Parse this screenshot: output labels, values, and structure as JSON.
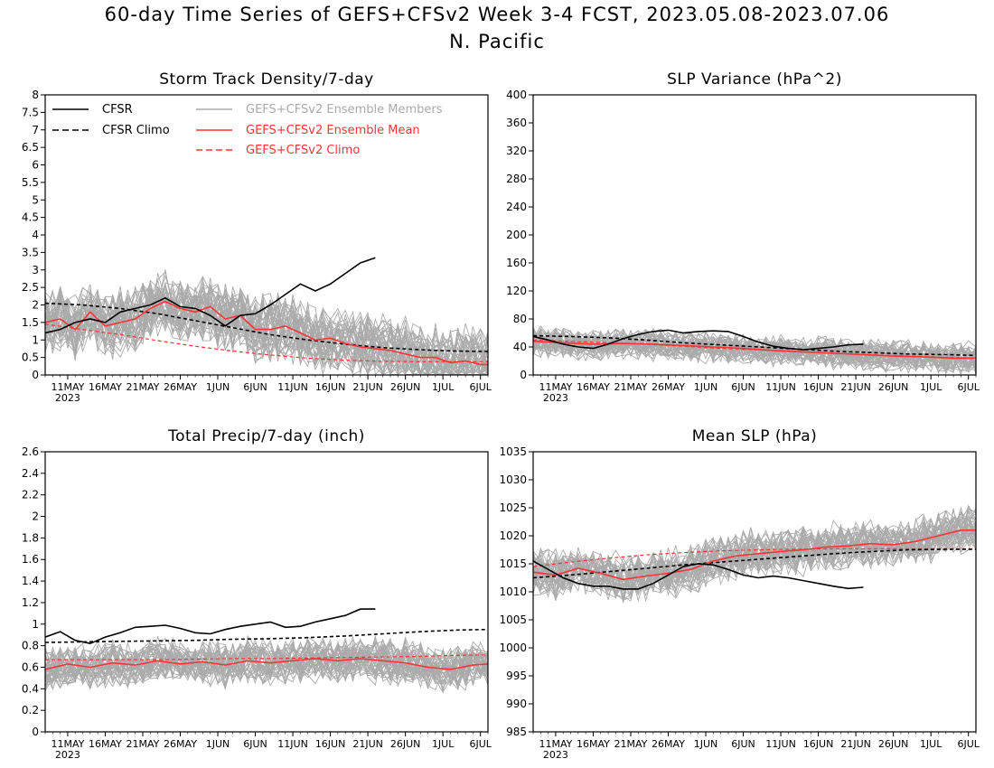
{
  "title_line1": "60-day Time Series of GEFS+CFSv2 Week 3-4 FCST, 2023.05.08-2023.07.06",
  "title_line2": "N. Pacific",
  "x_tick_labels": [
    "11MAY",
    "16MAY",
    "21MAY",
    "26MAY",
    "1JUN",
    "6JUN",
    "11JUN",
    "16JUN",
    "21JUN",
    "26JUN",
    "1JUL",
    "6JUL"
  ],
  "x_year_label": "2023",
  "legend": {
    "cfsr": "CFSR",
    "cfsr_climo": "CFSR Climo",
    "members": "GEFS+CFSv2 Ensemble Members",
    "ens_mean": "GEFS+CFSv2 Ensemble Mean",
    "gefs_climo": "GEFS+CFSv2 Climo"
  },
  "colors": {
    "cfsr": "#000000",
    "members": "#aaaaaa",
    "ens_mean": "#ff3333",
    "gefs_climo": "#ff3333"
  },
  "chart_data": [
    {
      "type": "line",
      "title": "Storm Track Density/7-day",
      "ylim": [
        0,
        8
      ],
      "y_ticks": [
        "0",
        "0.5",
        "1",
        "1.5",
        "2",
        "2.5",
        "3",
        "3.5",
        "4",
        "4.5",
        "5",
        "5.5",
        "6",
        "6.5",
        "7",
        "7.5",
        "8"
      ],
      "x_days": [
        0,
        59
      ],
      "series": [
        {
          "name": "CFSR",
          "style": "solid-black",
          "x": [
            0,
            2,
            4,
            6,
            8,
            10,
            12,
            14,
            16,
            18,
            20,
            22,
            24,
            26,
            28,
            30,
            32,
            34,
            36,
            38,
            40,
            42,
            44
          ],
          "y": [
            1.2,
            1.3,
            1.5,
            1.6,
            1.5,
            1.8,
            1.9,
            2.0,
            2.2,
            1.95,
            1.9,
            1.7,
            1.4,
            1.7,
            1.75,
            2.0,
            2.3,
            2.6,
            2.4,
            2.6,
            2.9,
            3.2,
            3.35
          ]
        },
        {
          "name": "CFSR Climo",
          "style": "dashed-black",
          "x": [
            0,
            5,
            10,
            15,
            20,
            25,
            30,
            35,
            40,
            45,
            50,
            55,
            59
          ],
          "y": [
            2.05,
            2.0,
            1.9,
            1.75,
            1.55,
            1.35,
            1.15,
            1.0,
            0.88,
            0.78,
            0.72,
            0.68,
            0.67
          ]
        },
        {
          "name": "GEFS+CFSv2 Ensemble Mean",
          "style": "solid-red",
          "x": [
            0,
            2,
            4,
            6,
            8,
            10,
            12,
            14,
            16,
            18,
            20,
            22,
            24,
            26,
            28,
            30,
            32,
            34,
            36,
            38,
            40,
            42,
            44,
            46,
            48,
            50,
            52,
            54,
            56,
            58,
            59
          ],
          "y": [
            1.5,
            1.6,
            1.3,
            1.8,
            1.4,
            1.5,
            1.6,
            1.9,
            2.1,
            1.9,
            1.8,
            1.95,
            1.6,
            1.7,
            1.3,
            1.3,
            1.4,
            1.2,
            1.0,
            1.05,
            0.9,
            0.8,
            0.75,
            0.7,
            0.6,
            0.5,
            0.5,
            0.35,
            0.4,
            0.3,
            0.3
          ]
        },
        {
          "name": "GEFS+CFSv2 Climo",
          "style": "dashed-red",
          "x": [
            0,
            5,
            10,
            15,
            20,
            25,
            30,
            35,
            40,
            45,
            50,
            55,
            59
          ],
          "y": [
            1.45,
            1.3,
            1.15,
            0.98,
            0.82,
            0.68,
            0.57,
            0.48,
            0.42,
            0.39,
            0.38,
            0.38,
            0.38
          ]
        }
      ],
      "members": {
        "name": "GEFS+CFSv2 Ensemble Members",
        "count": 40,
        "mean_ref": "GEFS+CFSv2 Ensemble Mean",
        "spread": 0.8
      }
    },
    {
      "type": "line",
      "title": "SLP Variance (hPa^2)",
      "ylim": [
        0,
        400
      ],
      "y_ticks": [
        "0",
        "40",
        "80",
        "120",
        "160",
        "200",
        "240",
        "280",
        "320",
        "360",
        "400"
      ],
      "x_days": [
        0,
        59
      ],
      "series": [
        {
          "name": "CFSR",
          "style": "solid-black",
          "x": [
            0,
            2,
            4,
            6,
            8,
            10,
            12,
            14,
            16,
            18,
            20,
            22,
            24,
            26,
            28,
            30,
            32,
            34,
            36,
            38,
            40,
            42,
            44
          ],
          "y": [
            55,
            50,
            44,
            40,
            38,
            44,
            52,
            58,
            62,
            64,
            60,
            62,
            63,
            62,
            55,
            47,
            41,
            38,
            36,
            38,
            40,
            43,
            44
          ]
        },
        {
          "name": "CFSR Climo",
          "style": "dashed-black",
          "x": [
            0,
            5,
            10,
            15,
            20,
            25,
            30,
            35,
            40,
            45,
            50,
            55,
            59
          ],
          "y": [
            56,
            55,
            53,
            50,
            46,
            43,
            40,
            37,
            34,
            32,
            30,
            29,
            28
          ]
        },
        {
          "name": "GEFS+CFSv2 Ensemble Mean",
          "style": "solid-red",
          "x": [
            0,
            4,
            8,
            12,
            16,
            20,
            24,
            28,
            32,
            36,
            40,
            44,
            48,
            52,
            56,
            59
          ],
          "y": [
            48,
            46,
            44,
            45,
            44,
            42,
            40,
            38,
            35,
            33,
            31,
            29,
            27,
            26,
            24,
            24
          ]
        },
        {
          "name": "GEFS+CFSv2 Climo",
          "style": "dashed-red",
          "x": [
            0,
            5,
            10,
            15,
            20,
            25,
            30,
            35,
            40,
            45,
            50,
            55,
            59
          ],
          "y": [
            50,
            48,
            46,
            44,
            41,
            38,
            36,
            33,
            31,
            29,
            27,
            25,
            24
          ]
        }
      ],
      "members": {
        "name": "GEFS+CFSv2 Ensemble Members",
        "count": 40,
        "mean_ref": "GEFS+CFSv2 Ensemble Mean",
        "spread": 18
      }
    },
    {
      "type": "line",
      "title": "Total Precip/7-day (inch)",
      "ylim": [
        0,
        2.6
      ],
      "y_ticks": [
        "0",
        "0.2",
        "0.4",
        "0.6",
        "0.8",
        "1",
        "1.2",
        "1.4",
        "1.6",
        "1.8",
        "2",
        "2.2",
        "2.4",
        "2.6"
      ],
      "x_days": [
        0,
        59
      ],
      "series": [
        {
          "name": "CFSR",
          "style": "solid-black",
          "x": [
            0,
            2,
            4,
            6,
            8,
            10,
            12,
            14,
            16,
            18,
            20,
            22,
            24,
            26,
            28,
            30,
            32,
            34,
            36,
            38,
            40,
            42,
            44
          ],
          "y": [
            0.88,
            0.93,
            0.85,
            0.82,
            0.88,
            0.92,
            0.97,
            0.98,
            0.99,
            0.96,
            0.92,
            0.91,
            0.95,
            0.98,
            1.0,
            1.02,
            0.97,
            0.98,
            1.02,
            1.05,
            1.08,
            1.14,
            1.14
          ]
        },
        {
          "name": "CFSR Climo",
          "style": "dashed-black",
          "x": [
            0,
            5,
            10,
            15,
            20,
            25,
            30,
            35,
            40,
            45,
            50,
            55,
            59
          ],
          "y": [
            0.83,
            0.835,
            0.84,
            0.845,
            0.85,
            0.86,
            0.865,
            0.875,
            0.89,
            0.91,
            0.93,
            0.945,
            0.95
          ]
        },
        {
          "name": "GEFS+CFSv2 Ensemble Mean",
          "style": "solid-red",
          "x": [
            0,
            3,
            6,
            9,
            12,
            15,
            18,
            21,
            24,
            27,
            30,
            33,
            36,
            39,
            42,
            45,
            48,
            51,
            54,
            57,
            59
          ],
          "y": [
            0.58,
            0.63,
            0.6,
            0.64,
            0.62,
            0.66,
            0.63,
            0.65,
            0.62,
            0.66,
            0.64,
            0.66,
            0.68,
            0.66,
            0.68,
            0.66,
            0.64,
            0.6,
            0.58,
            0.62,
            0.63
          ]
        },
        {
          "name": "GEFS+CFSv2 Climo",
          "style": "dashed-red",
          "x": [
            0,
            5,
            10,
            15,
            20,
            25,
            30,
            35,
            40,
            45,
            50,
            55,
            59
          ],
          "y": [
            0.67,
            0.67,
            0.67,
            0.67,
            0.675,
            0.68,
            0.68,
            0.685,
            0.69,
            0.695,
            0.7,
            0.71,
            0.715
          ]
        }
      ],
      "members": {
        "name": "GEFS+CFSv2 Ensemble Members",
        "count": 40,
        "mean_ref": "GEFS+CFSv2 Ensemble Mean",
        "spread": 0.17
      }
    },
    {
      "type": "line",
      "title": "Mean SLP (hPa)",
      "ylim": [
        985,
        1035
      ],
      "y_ticks": [
        "985",
        "990",
        "995",
        "1000",
        "1005",
        "1010",
        "1015",
        "1020",
        "1025",
        "1030",
        "1035"
      ],
      "x_days": [
        0,
        59
      ],
      "series": [
        {
          "name": "CFSR",
          "style": "solid-black",
          "x": [
            0,
            2,
            4,
            6,
            8,
            10,
            12,
            14,
            16,
            18,
            20,
            22,
            24,
            26,
            28,
            30,
            32,
            34,
            36,
            38,
            40,
            42,
            44
          ],
          "y": [
            1015.5,
            1014,
            1012.5,
            1011.5,
            1011,
            1011,
            1010.5,
            1010.5,
            1011.5,
            1013,
            1014.5,
            1015,
            1014.8,
            1014,
            1013,
            1012.5,
            1012.8,
            1012.5,
            1012,
            1011.5,
            1011,
            1010.6,
            1010.8
          ]
        },
        {
          "name": "CFSR Climo",
          "style": "dashed-black",
          "x": [
            0,
            5,
            10,
            15,
            20,
            25,
            30,
            35,
            40,
            45,
            50,
            55,
            59
          ],
          "y": [
            1012.5,
            1013,
            1013.6,
            1014.2,
            1014.8,
            1015.3,
            1015.8,
            1016.3,
            1016.8,
            1017.2,
            1017.5,
            1017.6,
            1017.6
          ]
        },
        {
          "name": "GEFS+CFSv2 Ensemble Mean",
          "style": "solid-red",
          "x": [
            0,
            3,
            6,
            9,
            12,
            15,
            18,
            21,
            24,
            27,
            30,
            33,
            36,
            39,
            42,
            45,
            48,
            51,
            54,
            57,
            59
          ],
          "y": [
            1013.5,
            1013,
            1014.2,
            1013.3,
            1012.2,
            1012.8,
            1013.3,
            1014,
            1015.5,
            1016.4,
            1016.8,
            1017.2,
            1017.5,
            1018,
            1018.2,
            1018.6,
            1018.4,
            1019,
            1020,
            1021,
            1021
          ]
        },
        {
          "name": "GEFS+CFSv2 Climo",
          "style": "dashed-red",
          "x": [
            0,
            5,
            10,
            15,
            20,
            25,
            30,
            35,
            40,
            45,
            50,
            55,
            59
          ],
          "y": [
            1014.5,
            1015.3,
            1016,
            1016.6,
            1017,
            1017.3,
            1017.5,
            1017.6,
            1017.7,
            1017.7,
            1017.7,
            1017.7,
            1017.7
          ]
        }
      ],
      "members": {
        "name": "GEFS+CFSv2 Ensemble Members",
        "count": 40,
        "mean_ref": "GEFS+CFSv2 Ensemble Mean",
        "spread": 3.5
      }
    }
  ]
}
